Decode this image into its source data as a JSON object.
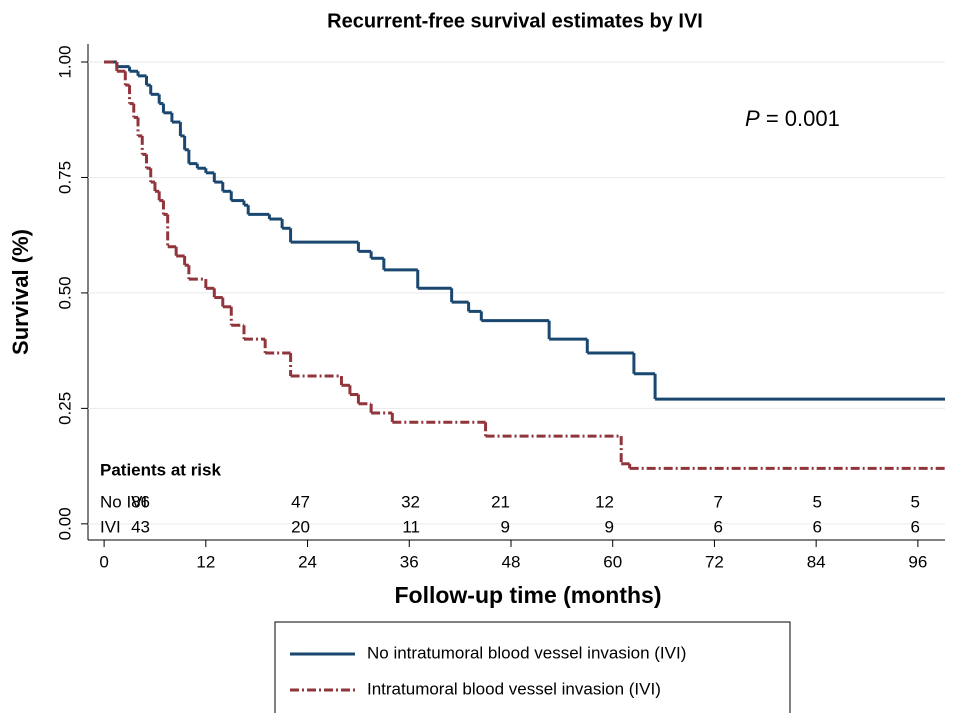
{
  "chart_data": {
    "type": "step",
    "title": "Recurrent-free survival estimates by IVI",
    "x_label": "Follow-up time (months)",
    "y_label": "Survival (%)",
    "annotation": {
      "symbol": "P",
      "text": "= 0.001"
    },
    "xlim": [
      -1.9,
      99.2
    ],
    "ylim": [
      -0.035,
      1.039
    ],
    "xticks": [
      0,
      12,
      24,
      36,
      48,
      60,
      72,
      84,
      96
    ],
    "yticks": [
      {
        "value": 0,
        "label": "0.00"
      },
      {
        "value": 0.25,
        "label": "0.25"
      },
      {
        "value": 0.5,
        "label": "0.50"
      },
      {
        "value": 0.75,
        "label": "0.75"
      },
      {
        "value": 1,
        "label": "1.00"
      }
    ],
    "grid": true,
    "series": [
      {
        "name": "No intratumoral blood vessel invasion (IVI)",
        "color": "#1a476f",
        "dash": false,
        "x": [
          0,
          1.5,
          3,
          4,
          5,
          5.5,
          6.5,
          7,
          8,
          9,
          9.5,
          10,
          11,
          12,
          13,
          14,
          15,
          16.5,
          17,
          19.5,
          21,
          22,
          30,
          31.5,
          33,
          37,
          41,
          43,
          44.5,
          52.5,
          57,
          62.5,
          65
        ],
        "values": [
          1,
          0.99,
          0.98,
          0.97,
          0.95,
          0.93,
          0.91,
          0.89,
          0.87,
          0.84,
          0.81,
          0.78,
          0.77,
          0.76,
          0.74,
          0.72,
          0.7,
          0.69,
          0.67,
          0.66,
          0.64,
          0.61,
          0.59,
          0.575,
          0.55,
          0.51,
          0.48,
          0.46,
          0.44,
          0.4,
          0.37,
          0.325,
          0.27
        ]
      },
      {
        "name": "Intratumoral blood vessel invasion (IVI)",
        "color": "#90353b",
        "dash": true,
        "x": [
          0,
          1.5,
          2.5,
          3,
          3.5,
          4,
          4.5,
          5,
          5.5,
          6,
          6.5,
          7,
          7.5,
          8.5,
          9.5,
          10,
          12,
          13,
          14,
          15,
          16.5,
          19,
          22,
          28,
          29,
          30,
          31.5,
          34,
          45,
          61,
          62
        ],
        "values": [
          1,
          0.98,
          0.95,
          0.91,
          0.88,
          0.84,
          0.8,
          0.77,
          0.74,
          0.72,
          0.7,
          0.67,
          0.6,
          0.58,
          0.56,
          0.53,
          0.51,
          0.49,
          0.47,
          0.43,
          0.4,
          0.37,
          0.32,
          0.3,
          0.28,
          0.26,
          0.24,
          0.22,
          0.19,
          0.13,
          0.12
        ]
      }
    ],
    "risk_table": {
      "title": "Patients at risk",
      "rows": [
        {
          "label": "No IVI",
          "values": [
            86,
            47,
            32,
            21,
            12,
            7,
            5,
            5
          ]
        },
        {
          "label": "IVI",
          "values": [
            43,
            20,
            11,
            9,
            9,
            6,
            6,
            6
          ]
        }
      ]
    }
  }
}
